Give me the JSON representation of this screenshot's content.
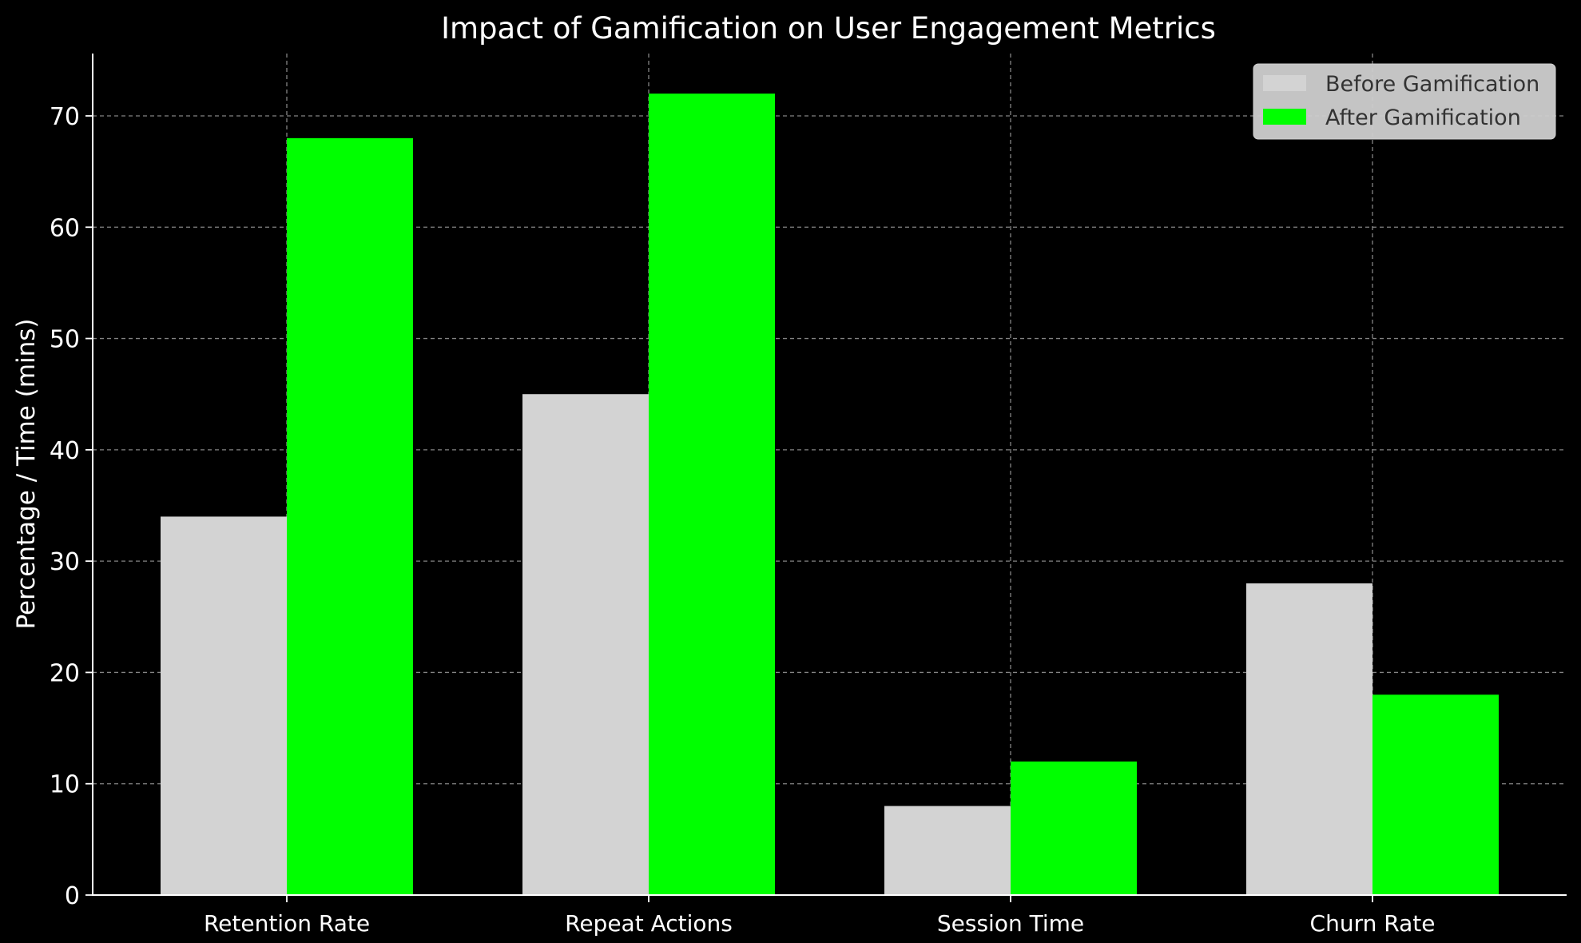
{
  "chart_data": {
    "type": "bar",
    "title": "Impact of Gamification on User Engagement Metrics",
    "xlabel": "",
    "ylabel": "Percentage / Time (mins)",
    "categories": [
      "Retention Rate",
      "Repeat Actions",
      "Session Time",
      "Churn Rate"
    ],
    "series": [
      {
        "name": "Before Gamification",
        "values": [
          34,
          45,
          8,
          28
        ],
        "color": "#d3d3d3"
      },
      {
        "name": "After Gamification",
        "values": [
          68,
          72,
          12,
          18
        ],
        "color": "#00ff00"
      }
    ],
    "ylim": [
      0,
      75.6
    ],
    "yticks": [
      0,
      10,
      20,
      30,
      40,
      50,
      60,
      70
    ],
    "grid": true,
    "legend_position": "top-right",
    "background": "#000000",
    "axis_color": "#ffffff",
    "grid_color": "#b0b0b0"
  }
}
